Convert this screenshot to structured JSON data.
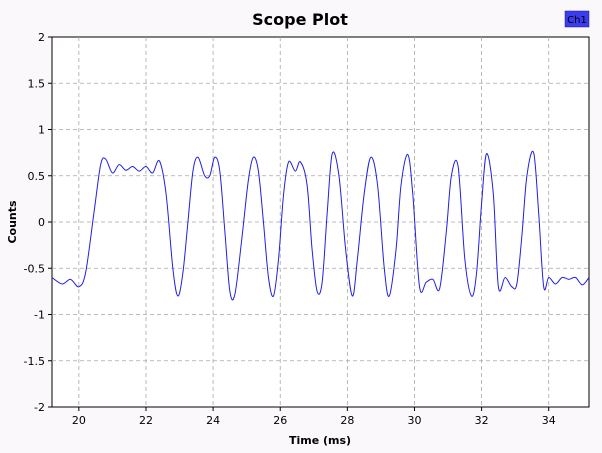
{
  "chart_data": {
    "type": "line",
    "title": "Scope Plot",
    "xlabel": "Time (ms)",
    "ylabel": "Counts",
    "xlim": [
      19.2,
      35.2
    ],
    "ylim": [
      -2,
      2
    ],
    "x_ticks": [
      20,
      22,
      24,
      26,
      28,
      30,
      32,
      34
    ],
    "x_tick_labels": [
      "20",
      "22",
      "24",
      "26",
      "28",
      "30",
      "32",
      "34"
    ],
    "y_ticks": [
      2,
      1.5,
      1,
      0.5,
      0,
      -0.5,
      -1,
      -1.5,
      -2
    ],
    "y_tick_labels": [
      "2",
      "1.5",
      "1",
      "0.5",
      "0",
      "-0.5",
      "-1",
      "-1.5",
      "-2"
    ],
    "grid": true,
    "legend_position": "top-right",
    "series": [
      {
        "name": "Ch1",
        "color": "#2020e0",
        "x": [
          19.2,
          19.5,
          19.75,
          20.0,
          20.2,
          20.45,
          20.65,
          20.8,
          21.0,
          21.2,
          21.4,
          21.6,
          21.8,
          22.0,
          22.2,
          22.4,
          22.6,
          22.8,
          22.95,
          23.1,
          23.25,
          23.4,
          23.55,
          23.75,
          23.9,
          24.05,
          24.2,
          24.35,
          24.5,
          24.65,
          24.85,
          25.05,
          25.2,
          25.35,
          25.5,
          25.65,
          25.8,
          25.95,
          26.1,
          26.25,
          26.45,
          26.6,
          26.8,
          26.95,
          27.1,
          27.25,
          27.4,
          27.55,
          27.75,
          27.95,
          28.15,
          28.3,
          28.5,
          28.7,
          28.9,
          29.1,
          29.25,
          29.45,
          29.6,
          29.8,
          29.95,
          30.15,
          30.35,
          30.55,
          30.75,
          30.95,
          31.1,
          31.3,
          31.5,
          31.7,
          31.85,
          32.0,
          32.15,
          32.35,
          32.5,
          32.7,
          32.9,
          33.05,
          33.2,
          33.35,
          33.55,
          33.7,
          33.85,
          34.0,
          34.2,
          34.4,
          34.6,
          34.8,
          35.0,
          35.2
        ],
        "y": [
          -0.6,
          -0.67,
          -0.62,
          -0.7,
          -0.55,
          0.1,
          0.62,
          0.68,
          0.53,
          0.62,
          0.56,
          0.6,
          0.55,
          0.6,
          0.53,
          0.66,
          0.3,
          -0.5,
          -0.8,
          -0.55,
          0.0,
          0.55,
          0.7,
          0.5,
          0.5,
          0.7,
          0.55,
          -0.1,
          -0.75,
          -0.78,
          -0.2,
          0.45,
          0.7,
          0.55,
          0.0,
          -0.6,
          -0.8,
          -0.4,
          0.3,
          0.65,
          0.55,
          0.65,
          0.4,
          -0.3,
          -0.75,
          -0.65,
          0.1,
          0.74,
          0.5,
          -0.3,
          -0.8,
          -0.4,
          0.3,
          0.7,
          0.4,
          -0.5,
          -0.8,
          -0.3,
          0.4,
          0.73,
          0.3,
          -0.7,
          -0.65,
          -0.62,
          -0.72,
          -0.1,
          0.5,
          0.6,
          -0.4,
          -0.8,
          -0.55,
          0.2,
          0.74,
          0.3,
          -0.7,
          -0.6,
          -0.7,
          -0.67,
          -0.15,
          0.5,
          0.75,
          0.1,
          -0.7,
          -0.6,
          -0.67,
          -0.6,
          -0.62,
          -0.6,
          -0.68,
          -0.6
        ]
      }
    ]
  }
}
